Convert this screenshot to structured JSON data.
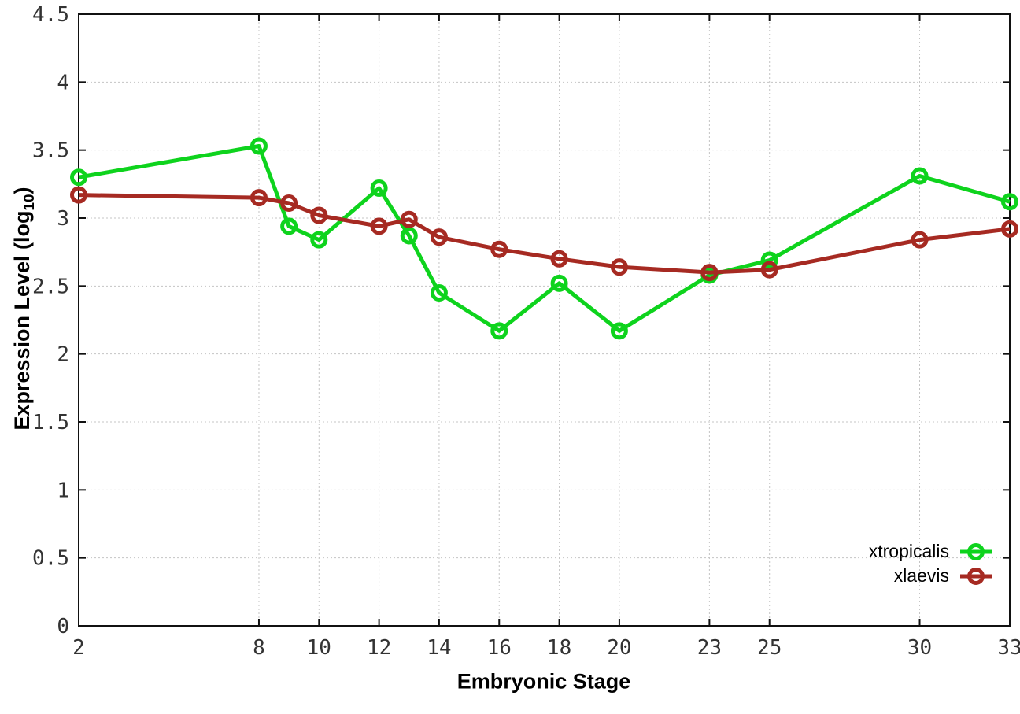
{
  "chart_data": {
    "type": "line",
    "title": "",
    "xlabel": "Embryonic Stage",
    "ylabel": "Expression Level (log10)",
    "ylabel_parts": {
      "pre": "Expression Level (log",
      "sub": "10",
      "post": ")"
    },
    "xlim": [
      2,
      33
    ],
    "ylim": [
      0,
      4.5
    ],
    "x_ticks": [
      2,
      8,
      10,
      12,
      14,
      16,
      18,
      20,
      23,
      25,
      30,
      33
    ],
    "y_ticks": [
      0,
      0.5,
      1,
      1.5,
      2,
      2.5,
      3,
      3.5,
      4,
      4.5
    ],
    "grid": true,
    "legend_position": "bottom-right-inside",
    "axis_color": "#111111",
    "grid_color": "#c4c4c4",
    "series": [
      {
        "name": "xtropicalis",
        "color": "#0ed31d",
        "marker": "open-circle",
        "x": [
          2,
          8,
          9,
          10,
          12,
          13,
          14,
          16,
          18,
          20,
          23,
          25,
          30,
          33
        ],
        "values": [
          3.3,
          3.53,
          2.94,
          2.84,
          3.22,
          2.87,
          2.45,
          2.17,
          2.52,
          2.17,
          2.58,
          2.69,
          3.31,
          3.12
        ]
      },
      {
        "name": "xlaevis",
        "color": "#a62a22",
        "marker": "open-circle",
        "x": [
          2,
          8,
          9,
          10,
          12,
          13,
          14,
          16,
          18,
          20,
          23,
          25,
          30,
          33
        ],
        "values": [
          3.17,
          3.15,
          3.11,
          3.02,
          2.94,
          2.99,
          2.86,
          2.77,
          2.7,
          2.64,
          2.6,
          2.62,
          2.84,
          2.92
        ]
      }
    ]
  }
}
